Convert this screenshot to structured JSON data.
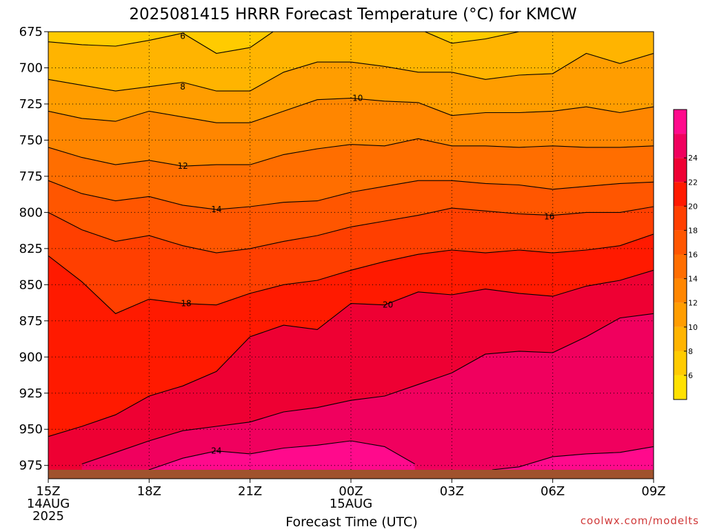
{
  "chart_data": {
    "type": "heatmap",
    "title": "2025081415 HRRR Forecast Temperature (°C) for KMCW",
    "xlabel": "Forecast Time (UTC)",
    "credit": "coolwx.com/modelts",
    "y_axis": {
      "ticks": [
        "675",
        "700",
        "725",
        "750",
        "775",
        "800",
        "825",
        "850",
        "875",
        "900",
        "925",
        "950",
        "975"
      ],
      "range": [
        675,
        978
      ]
    },
    "x_axis": {
      "ticks": [
        {
          "label": "15Z",
          "sub1": "14AUG",
          "sub2": "2025",
          "hour": 0
        },
        {
          "label": "18Z",
          "sub1": "",
          "sub2": "",
          "hour": 3
        },
        {
          "label": "21Z",
          "sub1": "",
          "sub2": "",
          "hour": 6
        },
        {
          "label": "00Z",
          "sub1": "15AUG",
          "sub2": "",
          "hour": 9
        },
        {
          "label": "03Z",
          "sub1": "",
          "sub2": "",
          "hour": 12
        },
        {
          "label": "06Z",
          "sub1": "",
          "sub2": "",
          "hour": 15
        },
        {
          "label": "09Z",
          "sub1": "",
          "sub2": "",
          "hour": 18
        }
      ],
      "range": [
        0,
        18
      ]
    },
    "colorbar": {
      "levels": [
        4,
        6,
        8,
        10,
        12,
        14,
        16,
        18,
        20,
        22,
        24,
        26
      ],
      "colors": [
        "#ffe100",
        "#ffcb00",
        "#ffb400",
        "#ff9d00",
        "#ff8600",
        "#ff6e00",
        "#ff5600",
        "#ff3f00",
        "#ff1a00",
        "#ee0033",
        "#f0005e",
        "#ff0a8c"
      ],
      "labels": [
        "6",
        "8",
        "10",
        "12",
        "14",
        "16",
        "18",
        "20",
        "22",
        "24"
      ]
    },
    "contours": [
      {
        "value": 6,
        "label": "6",
        "label_at": [
          4,
          678
        ],
        "points": [
          [
            0,
            682
          ],
          [
            1,
            684
          ],
          [
            2,
            685
          ],
          [
            3,
            681
          ],
          [
            4,
            676
          ],
          [
            5,
            690
          ],
          [
            6,
            686
          ],
          [
            7,
            670
          ],
          [
            8,
            668
          ],
          [
            9,
            665
          ],
          [
            10,
            669
          ],
          [
            11,
            673
          ],
          [
            12,
            683
          ],
          [
            13,
            680
          ],
          [
            14,
            675
          ],
          [
            15,
            669
          ],
          [
            16,
            660
          ],
          [
            17,
            655
          ],
          [
            18,
            660
          ]
        ]
      },
      {
        "value": 8,
        "label": "8",
        "label_at": [
          4,
          713
        ],
        "points": [
          [
            0,
            708
          ],
          [
            1,
            712
          ],
          [
            2,
            716
          ],
          [
            3,
            713
          ],
          [
            4,
            710
          ],
          [
            5,
            716
          ],
          [
            6,
            716
          ],
          [
            7,
            703
          ],
          [
            8,
            696
          ],
          [
            9,
            696
          ],
          [
            10,
            699
          ],
          [
            11,
            703
          ],
          [
            12,
            703
          ],
          [
            13,
            708
          ],
          [
            14,
            705
          ],
          [
            15,
            704
          ],
          [
            16,
            690
          ],
          [
            17,
            697
          ],
          [
            18,
            690
          ]
        ]
      },
      {
        "value": 10,
        "label": "10",
        "label_at": [
          9.2,
          721
        ],
        "points": [
          [
            0,
            730
          ],
          [
            1,
            735
          ],
          [
            2,
            737
          ],
          [
            3,
            730
          ],
          [
            4,
            734
          ],
          [
            5,
            738
          ],
          [
            6,
            738
          ],
          [
            7,
            730
          ],
          [
            8,
            722
          ],
          [
            9,
            721
          ],
          [
            10,
            723
          ],
          [
            11,
            724
          ],
          [
            12,
            733
          ],
          [
            13,
            731
          ],
          [
            14,
            731
          ],
          [
            15,
            730
          ],
          [
            16,
            727
          ],
          [
            17,
            731
          ],
          [
            18,
            727
          ]
        ]
      },
      {
        "value": 12,
        "label": "12",
        "label_at": [
          4,
          768
        ],
        "points": [
          [
            0,
            755
          ],
          [
            1,
            762
          ],
          [
            2,
            767
          ],
          [
            3,
            764
          ],
          [
            4,
            768
          ],
          [
            5,
            767
          ],
          [
            6,
            767
          ],
          [
            7,
            760
          ],
          [
            8,
            756
          ],
          [
            9,
            753
          ],
          [
            10,
            754
          ],
          [
            11,
            749
          ],
          [
            12,
            754
          ],
          [
            13,
            754
          ],
          [
            14,
            755
          ],
          [
            15,
            754
          ],
          [
            16,
            755
          ],
          [
            17,
            755
          ],
          [
            18,
            754
          ]
        ]
      },
      {
        "value": 14,
        "label": "14",
        "label_at": [
          5,
          798
        ],
        "points": [
          [
            0,
            778
          ],
          [
            1,
            787
          ],
          [
            2,
            792
          ],
          [
            3,
            789
          ],
          [
            4,
            795
          ],
          [
            5,
            798
          ],
          [
            6,
            796
          ],
          [
            7,
            793
          ],
          [
            8,
            792
          ],
          [
            9,
            786
          ],
          [
            10,
            782
          ],
          [
            11,
            778
          ],
          [
            12,
            778
          ],
          [
            13,
            780
          ],
          [
            14,
            781
          ],
          [
            15,
            784
          ],
          [
            16,
            782
          ],
          [
            17,
            780
          ],
          [
            18,
            779
          ]
        ]
      },
      {
        "value": 16,
        "label": "16",
        "label_at": [
          14.9,
          803
        ],
        "points": [
          [
            0,
            800
          ],
          [
            1,
            812
          ],
          [
            2,
            820
          ],
          [
            3,
            816
          ],
          [
            4,
            823
          ],
          [
            5,
            828
          ],
          [
            6,
            825
          ],
          [
            7,
            820
          ],
          [
            8,
            816
          ],
          [
            9,
            810
          ],
          [
            10,
            806
          ],
          [
            11,
            802
          ],
          [
            12,
            797
          ],
          [
            13,
            799
          ],
          [
            14,
            801
          ],
          [
            15,
            802
          ],
          [
            16,
            800
          ],
          [
            17,
            800
          ],
          [
            18,
            796
          ]
        ]
      },
      {
        "value": 18,
        "label": "18",
        "label_at": [
          4.1,
          863
        ],
        "points": [
          [
            0,
            830
          ],
          [
            1,
            848
          ],
          [
            2,
            870
          ],
          [
            3,
            860
          ],
          [
            4,
            863
          ],
          [
            5,
            864
          ],
          [
            6,
            856
          ],
          [
            7,
            850
          ],
          [
            8,
            847
          ],
          [
            9,
            840
          ],
          [
            10,
            834
          ],
          [
            11,
            829
          ],
          [
            12,
            826
          ],
          [
            13,
            828
          ],
          [
            14,
            826
          ],
          [
            15,
            828
          ],
          [
            16,
            826
          ],
          [
            17,
            823
          ],
          [
            18,
            815
          ]
        ]
      },
      {
        "value": 20,
        "label": "20",
        "label_at": [
          10.1,
          864
        ],
        "points": [
          [
            0,
            955
          ],
          [
            1,
            948
          ],
          [
            2,
            940
          ],
          [
            3,
            927
          ],
          [
            4,
            920
          ],
          [
            5,
            910
          ],
          [
            6,
            886
          ],
          [
            7,
            878
          ],
          [
            8,
            881
          ],
          [
            9,
            863
          ],
          [
            10,
            864
          ],
          [
            11,
            855
          ],
          [
            12,
            857
          ],
          [
            13,
            853
          ],
          [
            14,
            856
          ],
          [
            15,
            858
          ],
          [
            16,
            851
          ],
          [
            17,
            847
          ],
          [
            18,
            840
          ]
        ]
      },
      {
        "value": 22,
        "label": "",
        "label_at": null,
        "points": [
          [
            1,
            974
          ],
          [
            2,
            966
          ],
          [
            3,
            958
          ],
          [
            4,
            951
          ],
          [
            5,
            948
          ],
          [
            6,
            945
          ],
          [
            7,
            938
          ],
          [
            8,
            935
          ],
          [
            9,
            930
          ],
          [
            10,
            927
          ],
          [
            11,
            919
          ],
          [
            12,
            911
          ],
          [
            13,
            898
          ],
          [
            14,
            896
          ],
          [
            15,
            897
          ],
          [
            16,
            886
          ],
          [
            17,
            873
          ],
          [
            18,
            870
          ]
        ]
      },
      {
        "value": 24,
        "label": "24",
        "label_at": [
          5,
          965
        ],
        "points": [
          [
            3,
            978
          ],
          [
            4,
            970
          ],
          [
            5,
            965
          ],
          [
            6,
            967
          ],
          [
            7,
            963
          ],
          [
            8,
            961
          ],
          [
            9,
            958
          ],
          [
            10,
            962
          ],
          [
            10.9,
            974
          ]
        ]
      },
      {
        "value": 26,
        "label": "",
        "label_at": null,
        "points": [
          [
            13.2,
            978
          ],
          [
            14,
            976
          ],
          [
            15,
            969
          ],
          [
            16,
            967
          ],
          [
            17,
            966
          ],
          [
            18,
            962
          ]
        ]
      }
    ]
  }
}
